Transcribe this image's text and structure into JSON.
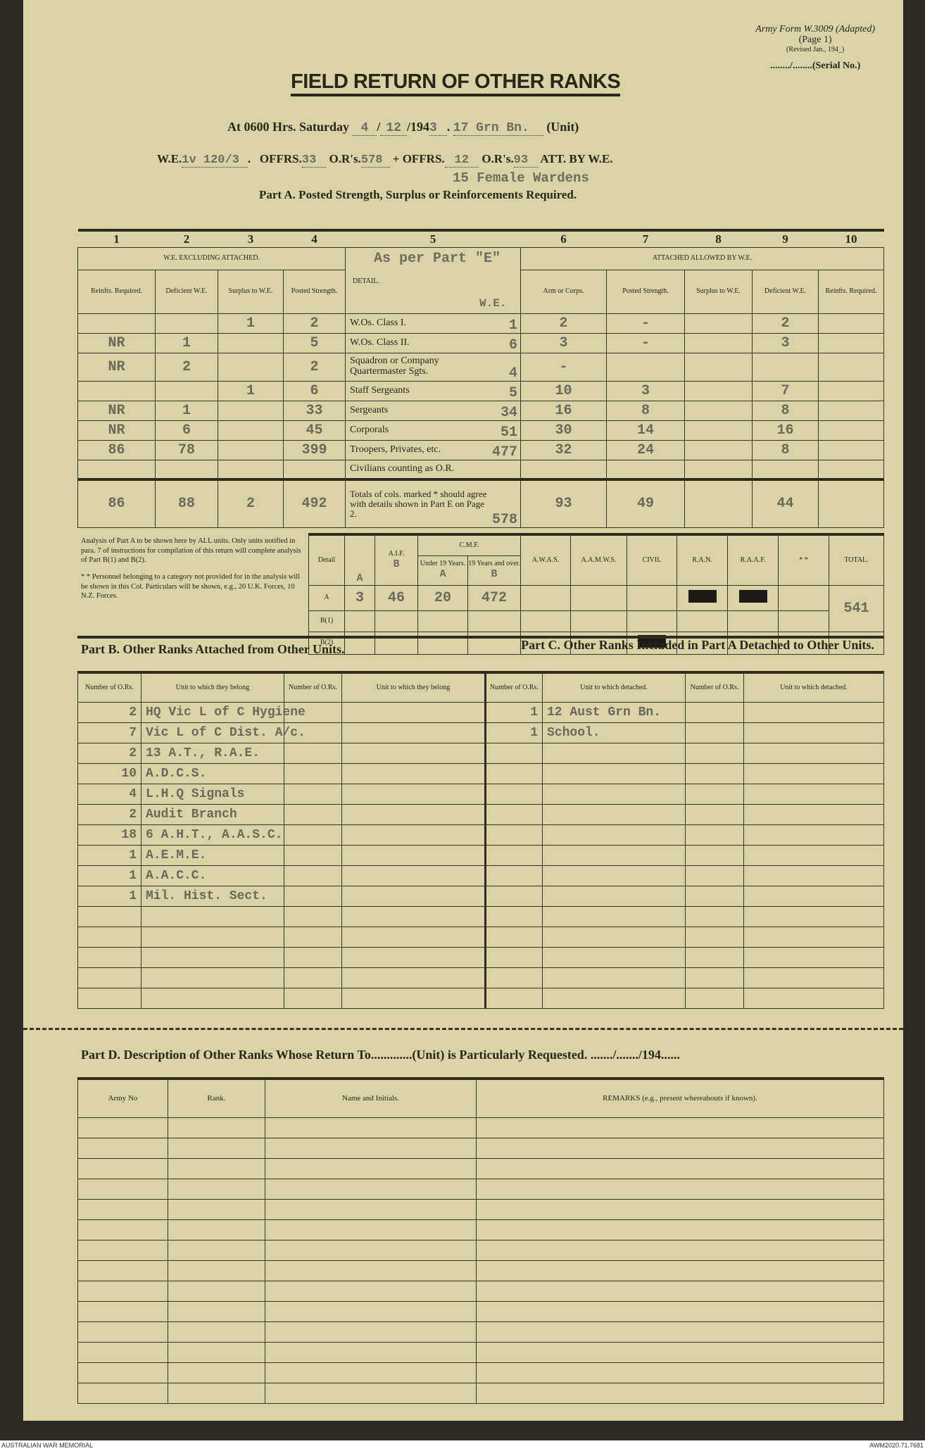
{
  "header": {
    "form_ref": "Army Form W.3009 (Adapted)",
    "page": "(Page 1)",
    "revised": "(Revised Jan., 194_)",
    "serial": "......../........(Serial No.)",
    "title": "FIELD RETURN OF OTHER RANKS",
    "at_label": "At 0600 Hrs. Saturday",
    "day": "4",
    "month": "12",
    "year_prefix": "194",
    "year_typed": "3",
    "unit_typed": "17 Grn Bn.",
    "unit_label": "(Unit)",
    "we_label": "W.E.",
    "we_typed": "1v 120/3",
    "offrs_label": "OFFRS.",
    "offrs": "33",
    "ors_label": "O.R's.",
    "ors": "578",
    "plus": "+",
    "att_offrs": "12",
    "att_ors": "93",
    "att_label": "ATT. BY W.E.",
    "female_wardens": "15 Female Wardens",
    "part_a": "Part A.  Posted Strength, Surplus or Reinforcements Required."
  },
  "part_a": {
    "col_numbers": [
      "1",
      "2",
      "3",
      "4",
      "5",
      "6",
      "7",
      "8",
      "9",
      "10"
    ],
    "group_left": "W.E. EXCLUDING ATTACHED.",
    "group_right": "ATTACHED ALLOWED BY W.E.",
    "detail_header": "DETAIL.",
    "typed_note": "As per Part \"E\"",
    "we_typed_1": "W.E.",
    "we_typed_2": "W.E.",
    "headers": [
      "Reinfts. Required.",
      "Deficient W.E.",
      "Surplus to W.E.",
      "Posted Strength.",
      "Arm or Corps.",
      "Posted Strength.",
      "Surplus to W.E.",
      "Deficient W.E.",
      "Reinfts. Required."
    ],
    "rows": [
      {
        "detail": "W.Os. Class I.",
        "c1": "",
        "c2": "",
        "c3": "1",
        "c4": "2",
        "we": "1",
        "c6": "2",
        "c7": "-",
        "c8": "",
        "c9": "2",
        "c10": ""
      },
      {
        "detail": "W.Os. Class II.",
        "c1": "NR",
        "c2": "1",
        "c3": "",
        "c4": "5",
        "we": "6",
        "c6": "3",
        "c7": "-",
        "c8": "",
        "c9": "3",
        "c10": ""
      },
      {
        "detail": "Squadron or Company Quartermaster Sgts.",
        "c1": "NR",
        "c2": "2",
        "c3": "",
        "c4": "2",
        "we": "4",
        "c6": "-",
        "c7": "",
        "c8": "",
        "c9": "",
        "c10": ""
      },
      {
        "detail": "Staff Sergeants",
        "c1": "",
        "c2": "",
        "c3": "1",
        "c4": "6",
        "we": "5",
        "c6": "10",
        "c7": "3",
        "c8": "",
        "c9": "7",
        "c10": ""
      },
      {
        "detail": "Sergeants",
        "c1": "NR",
        "c2": "1",
        "c3": "",
        "c4": "33",
        "we": "34",
        "c6": "16",
        "c7": "8",
        "c8": "",
        "c9": "8",
        "c10": ""
      },
      {
        "detail": "Corporals",
        "c1": "NR",
        "c2": "6",
        "c3": "",
        "c4": "45",
        "we": "51",
        "c6": "30",
        "c7": "14",
        "c8": "",
        "c9": "16",
        "c10": ""
      },
      {
        "detail": "Troopers, Privates, etc.",
        "c1": "86",
        "c2": "78",
        "c3": "",
        "c4": "399",
        "we": "477",
        "c6": "32",
        "c7": "24",
        "c8": "",
        "c9": "8",
        "c10": ""
      },
      {
        "detail": "Civilians counting as O.R.",
        "c1": "",
        "c2": "",
        "c3": "",
        "c4": "",
        "we": "",
        "c6": "",
        "c7": "",
        "c8": "",
        "c9": "",
        "c10": ""
      }
    ],
    "totals": {
      "detail": "Totals of cols. marked * should agree with details shown in Part E on Page 2.",
      "c1": "86",
      "c2": "88",
      "c3": "2",
      "c4": "492",
      "we": "578",
      "c6": "93",
      "c7": "49",
      "c8": "",
      "c9": "44",
      "c10": "",
      "star": "*"
    }
  },
  "analysis": {
    "note1": "Analysis of Part A to be shown here by ALL units. Only units notified in para. 7 of instructions for compilation of this return will complete analysis of Part B(1) and B(2).",
    "note2": "* * Personnel belonging to a category not provided for in the analysis will be shown in this Col. Particulars will be shown, e.g., 20 U.K. Forces, 10 N.Z. Forces.",
    "headers": {
      "detail": "Detail",
      "aif": "A.I.F.",
      "cmf": "C.M.F.",
      "under19": "Under 19 Years.",
      "over19": "19 Years and over.",
      "awas": "A.W.A.S.",
      "aamws": "A.A.M.W.S.",
      "civil": "CIVIL",
      "ran": "R.A.N.",
      "raaf": "R.A.A.F.",
      "other": "* *",
      "total": "TOTAL."
    },
    "typed_subheads": [
      "A",
      "B",
      "A",
      "B"
    ],
    "rows": [
      {
        "label": "A",
        "v1": "3",
        "v2": "46",
        "v3": "20",
        "v4": "472"
      },
      {
        "label": "B(1)",
        "v1": "",
        "v2": "",
        "v3": "",
        "v4": ""
      },
      {
        "label": "B(2)",
        "v1": "",
        "v2": "",
        "v3": "",
        "v4": ""
      }
    ],
    "total": "541"
  },
  "part_b": {
    "title": "Part B.  Other Ranks Attached from Other Units.",
    "h_num": "Number of O.Rs.",
    "h_unit": "Unit to which they belong",
    "rows": [
      {
        "n": "2",
        "unit": "HQ Vic L of C Hygiene"
      },
      {
        "n": "7",
        "unit": "Vic L of C Dist. A/c."
      },
      {
        "n": "2",
        "unit": "13 A.T., R.A.E."
      },
      {
        "n": "10",
        "unit": "A.D.C.S."
      },
      {
        "n": "4",
        "unit": "L.H.Q Signals"
      },
      {
        "n": "2",
        "unit": "Audit Branch"
      },
      {
        "n": "18",
        "unit": "6 A.H.T., A.A.S.C."
      },
      {
        "n": "1",
        "unit": "A.E.M.E."
      },
      {
        "n": "1",
        "unit": "A.A.C.C."
      },
      {
        "n": "1",
        "unit": "Mil. Hist. Sect."
      }
    ]
  },
  "part_c": {
    "title": "Part C.  Other Ranks Included in Part A Detached to Other Units.",
    "h_num": "Number of O.Rs.",
    "h_unit": "Unit to which detached.",
    "rows": [
      {
        "n": "1",
        "unit": "12 Aust Grn Bn."
      },
      {
        "n": "1",
        "unit": "School."
      }
    ]
  },
  "part_d": {
    "title": "Part D.  Description of Other Ranks Whose Return To.............(Unit) is Particularly Requested. ......./......./194......",
    "headers": [
      "Army No",
      "Rank.",
      "Name and Initials.",
      "REMARKS  (e.g.,  present  whereabouts  if  known)."
    ]
  },
  "footer": {
    "left": "AUSTRALIAN WAR MEMORIAL",
    "right": "AWM2020.71.7681"
  }
}
